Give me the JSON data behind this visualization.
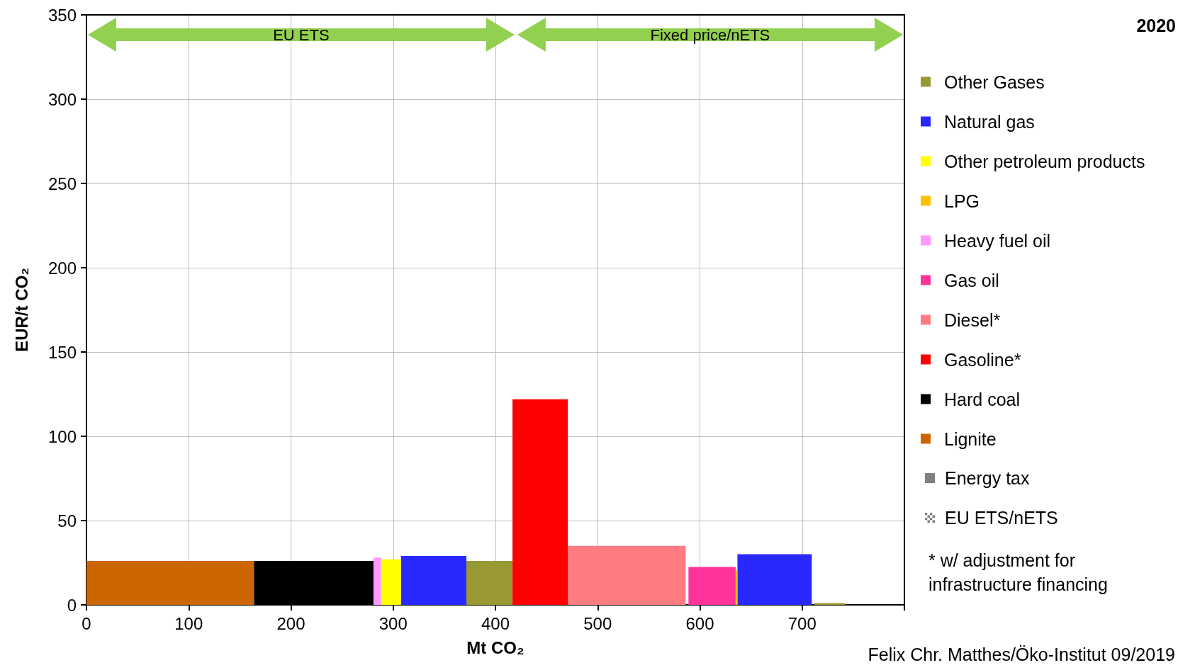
{
  "chart_data": {
    "type": "histogram",
    "title": "2020",
    "xlabel": "Mt CO₂",
    "ylabel": "EUR/t CO₂",
    "xlim": [
      0,
      800
    ],
    "xticks": [
      0,
      100,
      200,
      300,
      400,
      500,
      600,
      700,
      {
        "value": 800,
        "label": null
      }
    ],
    "ylim": [
      0,
      350
    ],
    "yticks": [
      0,
      50,
      100,
      150,
      200,
      250,
      300,
      350
    ],
    "grid": true,
    "legend": "right",
    "bins": [
      0,
      163.8,
      280.7,
      288.1,
      307.6,
      371.6,
      416.7,
      470.8,
      586.1,
      588.8,
      634.9,
      636.7,
      709.4,
      712,
      742
    ],
    "series": [
      {
        "name": "Other Gases",
        "color": "#999933",
        "values": [
          null,
          null,
          null,
          null,
          null,
          26,
          null,
          null,
          null,
          null,
          null,
          null,
          null,
          1
        ]
      },
      {
        "name": "Natural gas",
        "color": "#2929ff",
        "values": [
          null,
          null,
          null,
          null,
          29,
          null,
          null,
          null,
          null,
          null,
          null,
          30,
          null,
          null
        ]
      },
      {
        "name": "Other petroleum products",
        "color": "#ffff00",
        "values": [
          null,
          null,
          null,
          27,
          null,
          null,
          null,
          null,
          null,
          null,
          null,
          null,
          null,
          null
        ]
      },
      {
        "name": "LPG",
        "color": "#ffc000",
        "values": [
          null,
          null,
          null,
          null,
          null,
          null,
          null,
          null,
          null,
          null,
          20.5,
          null,
          null,
          null
        ]
      },
      {
        "name": "Heavy fuel oil",
        "color": "#ff99ff",
        "values": [
          null,
          null,
          28,
          null,
          null,
          null,
          null,
          null,
          null,
          null,
          null,
          null,
          null,
          null
        ]
      },
      {
        "name": "Gas oil",
        "color": "#ff3399",
        "values": [
          null,
          null,
          null,
          null,
          null,
          null,
          null,
          null,
          null,
          22.5,
          null,
          null,
          null,
          null
        ]
      },
      {
        "name": "Diesel*",
        "color": "#ff7c80",
        "values": [
          null,
          null,
          null,
          null,
          null,
          null,
          null,
          35,
          null,
          null,
          null,
          null,
          null,
          null
        ]
      },
      {
        "name": "Gasoline*",
        "color": "#ff0000",
        "values": [
          null,
          null,
          null,
          null,
          null,
          null,
          122,
          null,
          null,
          null,
          null,
          null,
          null,
          null
        ]
      },
      {
        "name": "Hard coal",
        "color": "#000000",
        "values": [
          null,
          26,
          null,
          null,
          null,
          null,
          null,
          null,
          null,
          null,
          null,
          null,
          null,
          null
        ]
      },
      {
        "name": "Lignite",
        "color": "#cc6600",
        "values": [
          26,
          null,
          null,
          null,
          null,
          null,
          null,
          null,
          null,
          null,
          null,
          null,
          null,
          null
        ]
      }
    ],
    "annotations": [
      "EU ETS",
      "Fixed price/nETS",
      "Energy tax",
      "EU ETS/nETS",
      "* w/ adjustment for infrastructure financing",
      "Felix Chr. Matthes/Öko-Institut 09/2019"
    ]
  }
}
